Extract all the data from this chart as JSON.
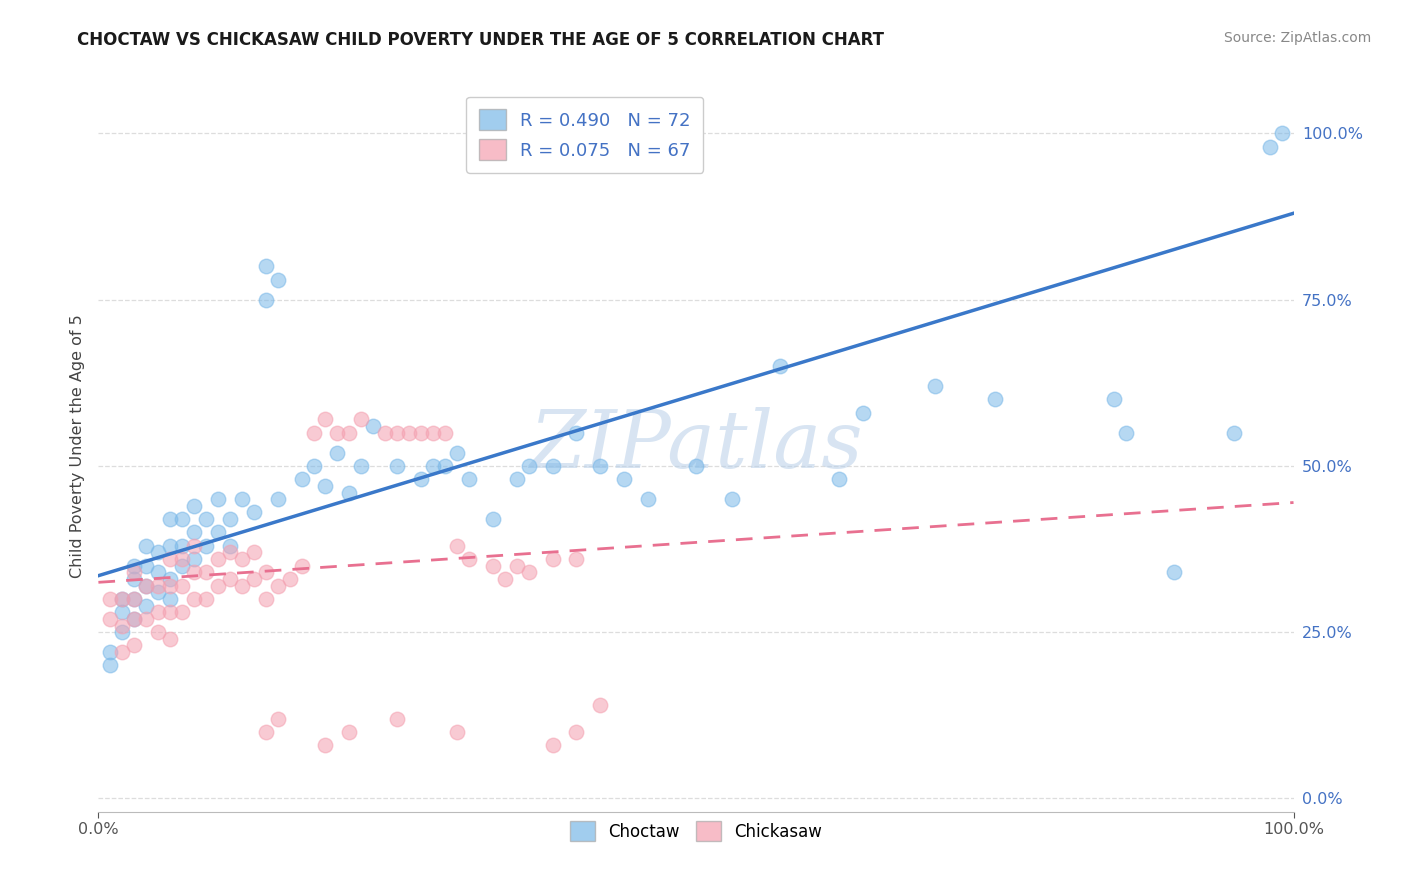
{
  "title": "CHOCTAW VS CHICKASAW CHILD POVERTY UNDER THE AGE OF 5 CORRELATION CHART",
  "source": "Source: ZipAtlas.com",
  "ylabel": "Child Poverty Under the Age of 5",
  "xlim": [
    0,
    1.0
  ],
  "ylim": [
    -0.02,
    1.08
  ],
  "choctaw_R": 0.49,
  "choctaw_N": 72,
  "chickasaw_R": 0.075,
  "chickasaw_N": 67,
  "choctaw_color": "#7ab8e8",
  "chickasaw_color": "#f4a0b0",
  "choctaw_line_color": "#3a78c9",
  "chickasaw_line_color": "#e87090",
  "choctaw_line_start_y": 0.335,
  "choctaw_line_end_y": 0.88,
  "chickasaw_line_start_y": 0.325,
  "chickasaw_line_end_y": 0.445,
  "watermark_text": "ZIPatlas",
  "yticks": [
    0.0,
    0.25,
    0.5,
    0.75,
    1.0
  ],
  "xticks": [
    0.0,
    1.0
  ],
  "grid_color": "#dddddd",
  "title_fontsize": 12,
  "source_fontsize": 10,
  "tick_color": "#4472c4",
  "legend_R_color": "#4472c4",
  "choctaw_x": [
    0.01,
    0.01,
    0.02,
    0.02,
    0.02,
    0.03,
    0.03,
    0.03,
    0.03,
    0.04,
    0.04,
    0.04,
    0.04,
    0.05,
    0.05,
    0.05,
    0.06,
    0.06,
    0.06,
    0.06,
    0.07,
    0.07,
    0.07,
    0.08,
    0.08,
    0.08,
    0.09,
    0.09,
    0.1,
    0.1,
    0.11,
    0.11,
    0.12,
    0.13,
    0.14,
    0.14,
    0.15,
    0.15,
    0.17,
    0.18,
    0.19,
    0.2,
    0.21,
    0.22,
    0.23,
    0.25,
    0.27,
    0.28,
    0.29,
    0.3,
    0.31,
    0.33,
    0.35,
    0.36,
    0.38,
    0.4,
    0.42,
    0.44,
    0.46,
    0.5,
    0.53,
    0.57,
    0.62,
    0.64,
    0.7,
    0.75,
    0.85,
    0.86,
    0.9,
    0.95,
    0.98,
    0.99
  ],
  "choctaw_y": [
    0.2,
    0.22,
    0.25,
    0.28,
    0.3,
    0.27,
    0.3,
    0.33,
    0.35,
    0.29,
    0.32,
    0.35,
    0.38,
    0.31,
    0.34,
    0.37,
    0.3,
    0.33,
    0.38,
    0.42,
    0.35,
    0.38,
    0.42,
    0.36,
    0.4,
    0.44,
    0.38,
    0.42,
    0.4,
    0.45,
    0.38,
    0.42,
    0.45,
    0.43,
    0.75,
    0.8,
    0.45,
    0.78,
    0.48,
    0.5,
    0.47,
    0.52,
    0.46,
    0.5,
    0.56,
    0.5,
    0.48,
    0.5,
    0.5,
    0.52,
    0.48,
    0.42,
    0.48,
    0.5,
    0.5,
    0.55,
    0.5,
    0.48,
    0.45,
    0.5,
    0.45,
    0.65,
    0.48,
    0.58,
    0.62,
    0.6,
    0.6,
    0.55,
    0.34,
    0.55,
    0.98,
    1.0
  ],
  "chickasaw_x": [
    0.01,
    0.01,
    0.02,
    0.02,
    0.02,
    0.03,
    0.03,
    0.03,
    0.03,
    0.04,
    0.04,
    0.05,
    0.05,
    0.05,
    0.06,
    0.06,
    0.06,
    0.06,
    0.07,
    0.07,
    0.07,
    0.08,
    0.08,
    0.08,
    0.09,
    0.09,
    0.1,
    0.1,
    0.11,
    0.11,
    0.12,
    0.12,
    0.13,
    0.13,
    0.14,
    0.14,
    0.15,
    0.16,
    0.17,
    0.18,
    0.19,
    0.2,
    0.21,
    0.22,
    0.24,
    0.25,
    0.26,
    0.27,
    0.28,
    0.29,
    0.3,
    0.31,
    0.33,
    0.34,
    0.35,
    0.36,
    0.38,
    0.4,
    0.14,
    0.15,
    0.19,
    0.21,
    0.25,
    0.3,
    0.38,
    0.4,
    0.42
  ],
  "chickasaw_y": [
    0.27,
    0.3,
    0.22,
    0.26,
    0.3,
    0.23,
    0.27,
    0.3,
    0.34,
    0.27,
    0.32,
    0.25,
    0.28,
    0.32,
    0.24,
    0.28,
    0.32,
    0.36,
    0.28,
    0.32,
    0.36,
    0.3,
    0.34,
    0.38,
    0.3,
    0.34,
    0.32,
    0.36,
    0.33,
    0.37,
    0.32,
    0.36,
    0.33,
    0.37,
    0.3,
    0.34,
    0.32,
    0.33,
    0.35,
    0.55,
    0.57,
    0.55,
    0.55,
    0.57,
    0.55,
    0.55,
    0.55,
    0.55,
    0.55,
    0.55,
    0.38,
    0.36,
    0.35,
    0.33,
    0.35,
    0.34,
    0.36,
    0.36,
    0.1,
    0.12,
    0.08,
    0.1,
    0.12,
    0.1,
    0.08,
    0.1,
    0.14
  ]
}
